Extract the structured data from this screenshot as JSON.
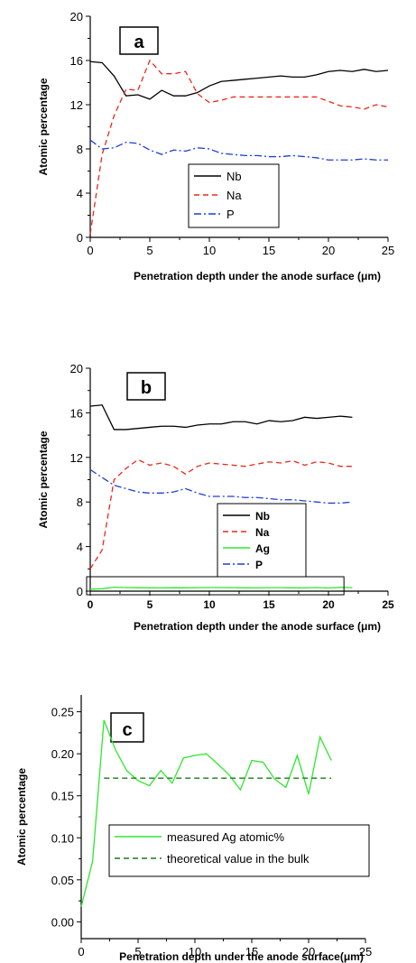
{
  "chart_data": [
    {
      "type": "line",
      "panel_label": "a",
      "xlabel": "Penetration depth under the anode surface (μm)",
      "ylabel": "Atomic percentage",
      "xlim": [
        0,
        25
      ],
      "ylim": [
        0,
        20
      ],
      "xticks": [
        0,
        5,
        10,
        15,
        20,
        25
      ],
      "yticks": [
        0,
        4,
        8,
        12,
        16,
        20
      ],
      "legend_position": "center",
      "series": [
        {
          "name": "Nb",
          "color": "#000000",
          "dash": "solid",
          "x": [
            0,
            1,
            2,
            3,
            4,
            5,
            6,
            7,
            8,
            9,
            10,
            11,
            12,
            13,
            14,
            15,
            16,
            17,
            18,
            19,
            20,
            21,
            22,
            23,
            24,
            25
          ],
          "y": [
            15.9,
            15.8,
            14.6,
            12.8,
            12.9,
            12.5,
            13.3,
            12.8,
            12.8,
            13.1,
            13.7,
            14.1,
            14.2,
            14.3,
            14.4,
            14.5,
            14.6,
            14.5,
            14.5,
            14.7,
            15.0,
            15.1,
            15.0,
            15.2,
            15.0,
            15.1
          ]
        },
        {
          "name": "Na",
          "color": "#e8281c",
          "dash": "dashed",
          "x": [
            0,
            1,
            2,
            3,
            4,
            5,
            6,
            7,
            8,
            9,
            10,
            11,
            12,
            13,
            14,
            15,
            16,
            17,
            18,
            19,
            20,
            21,
            22,
            23,
            24,
            25
          ],
          "y": [
            0.3,
            7.5,
            11.0,
            13.4,
            13.3,
            16.0,
            14.8,
            14.8,
            15.0,
            13.0,
            12.2,
            12.4,
            12.7,
            12.7,
            12.7,
            12.7,
            12.7,
            12.7,
            12.7,
            12.7,
            12.3,
            11.9,
            11.8,
            11.6,
            12.0,
            11.8
          ]
        },
        {
          "name": "P",
          "color": "#1f3fd6",
          "dash": "dashdot",
          "x": [
            0,
            1,
            2,
            3,
            4,
            5,
            6,
            7,
            8,
            9,
            10,
            11,
            12,
            13,
            14,
            15,
            16,
            17,
            18,
            19,
            20,
            21,
            22,
            23,
            24,
            25
          ],
          "y": [
            8.8,
            8.0,
            8.1,
            8.6,
            8.5,
            7.9,
            7.5,
            7.9,
            7.8,
            8.1,
            8.0,
            7.6,
            7.5,
            7.4,
            7.4,
            7.3,
            7.3,
            7.4,
            7.3,
            7.2,
            7.0,
            7.0,
            7.0,
            7.1,
            7.0,
            7.0
          ]
        }
      ]
    },
    {
      "type": "line",
      "panel_label": "b",
      "xlabel": "Penetration depth under the anode surface (μm)",
      "ylabel": "Atomic percentage",
      "xlim": [
        0,
        25
      ],
      "ylim": [
        0,
        20
      ],
      "xticks": [
        0,
        5,
        10,
        15,
        20,
        25
      ],
      "yticks": [
        0,
        4,
        8,
        12,
        16,
        20
      ],
      "legend_position": "center",
      "series": [
        {
          "name": "Nb",
          "color": "#000000",
          "dash": "solid",
          "x": [
            0,
            1,
            2,
            3,
            4,
            5,
            6,
            7,
            8,
            9,
            10,
            11,
            12,
            13,
            14,
            15,
            16,
            17,
            18,
            19,
            20,
            21,
            22
          ],
          "y": [
            16.6,
            16.7,
            14.5,
            14.5,
            14.6,
            14.7,
            14.8,
            14.8,
            14.7,
            14.9,
            15.0,
            15.0,
            15.2,
            15.2,
            15.0,
            15.3,
            15.2,
            15.3,
            15.6,
            15.5,
            15.6,
            15.7,
            15.6
          ]
        },
        {
          "name": "Na",
          "color": "#e8281c",
          "dash": "dashed",
          "x": [
            0,
            1,
            2,
            3,
            4,
            5,
            6,
            7,
            8,
            9,
            10,
            11,
            12,
            13,
            14,
            15,
            16,
            17,
            18,
            19,
            20,
            21,
            22
          ],
          "y": [
            2.0,
            3.7,
            10.0,
            11.0,
            11.8,
            11.3,
            11.5,
            11.2,
            10.5,
            11.2,
            11.5,
            11.4,
            11.3,
            11.2,
            11.4,
            11.6,
            11.5,
            11.7,
            11.3,
            11.6,
            11.5,
            11.2,
            11.2
          ]
        },
        {
          "name": "Ag",
          "color": "#2ee82e",
          "dash": "solid",
          "x": [
            0,
            1,
            2,
            3,
            4,
            5,
            6,
            7,
            8,
            9,
            10,
            11,
            12,
            13,
            14,
            15,
            16,
            17,
            18,
            19,
            20,
            21,
            22
          ],
          "y": [
            0.02,
            0.07,
            0.24,
            0.2,
            0.18,
            0.17,
            0.16,
            0.18,
            0.17,
            0.19,
            0.2,
            0.2,
            0.19,
            0.17,
            0.16,
            0.19,
            0.19,
            0.17,
            0.16,
            0.2,
            0.15,
            0.22,
            0.19
          ]
        },
        {
          "name": "P",
          "color": "#1f3fd6",
          "dash": "dashdot",
          "x": [
            0,
            1,
            2,
            3,
            4,
            5,
            6,
            7,
            8,
            9,
            10,
            11,
            12,
            13,
            14,
            15,
            16,
            17,
            18,
            19,
            20,
            21,
            22
          ],
          "y": [
            10.9,
            10.2,
            9.5,
            9.2,
            8.9,
            8.8,
            8.8,
            8.9,
            9.2,
            8.8,
            8.5,
            8.5,
            8.5,
            8.4,
            8.4,
            8.3,
            8.2,
            8.2,
            8.1,
            8.0,
            7.9,
            7.9,
            8.0
          ]
        }
      ]
    },
    {
      "type": "line",
      "panel_label": "c",
      "xlabel": "Penetration depth under the anode surface(μm)",
      "ylabel": "Atomic percentage",
      "xlim": [
        0,
        25
      ],
      "ylim": [
        -0.02,
        0.27
      ],
      "xticks": [
        0,
        5,
        10,
        15,
        20,
        25
      ],
      "yticks": [
        0.0,
        0.05,
        0.1,
        0.15,
        0.2,
        0.25
      ],
      "ytick_labels": [
        "0.00",
        "0.05",
        "0.10",
        "0.15",
        "0.20",
        "0.25"
      ],
      "legend_position": "lower-center",
      "series": [
        {
          "name": "measured Ag atomic%",
          "color": "#2ee82e",
          "dash": "solid",
          "x": [
            0,
            1,
            2,
            3,
            4,
            5,
            6,
            7,
            8,
            9,
            10,
            11,
            12,
            13,
            14,
            15,
            16,
            17,
            18,
            19,
            20,
            21,
            22
          ],
          "y": [
            0.018,
            0.072,
            0.24,
            0.205,
            0.18,
            0.168,
            0.162,
            0.18,
            0.165,
            0.195,
            0.198,
            0.2,
            0.188,
            0.175,
            0.157,
            0.192,
            0.19,
            0.17,
            0.16,
            0.198,
            0.152,
            0.22,
            0.192
          ]
        },
        {
          "name": "theoretical value in the bulk",
          "color": "#1a7a1a",
          "dash": "dashed",
          "x": [
            2,
            22
          ],
          "y": [
            0.171,
            0.171
          ]
        }
      ]
    }
  ]
}
